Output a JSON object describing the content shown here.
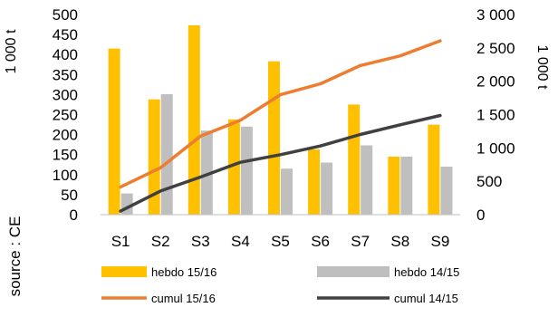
{
  "chart_data": {
    "type": "bar+line",
    "categories": [
      "S1",
      "S2",
      "S3",
      "S4",
      "S5",
      "S6",
      "S7",
      "S8",
      "S9"
    ],
    "series": [
      {
        "name": "hebdo 15/16",
        "kind": "bar",
        "axis": "left",
        "color": "#FFC000",
        "values": [
          415,
          288,
          473,
          238,
          383,
          163,
          275,
          145,
          225
        ]
      },
      {
        "name": "hebdo 14/15",
        "kind": "bar",
        "axis": "left",
        "color": "#BFBFBF",
        "values": [
          53,
          301,
          210,
          220,
          115,
          130,
          173,
          145,
          120
        ]
      },
      {
        "name": "cumul 15/16",
        "kind": "line",
        "axis": "right",
        "color": "#ED7D31",
        "values": [
          415,
          703,
          1176,
          1414,
          1797,
          1960,
          2235,
          2380,
          2605
        ]
      },
      {
        "name": "cumul 14/15",
        "kind": "line",
        "axis": "right",
        "color": "#404040",
        "values": [
          53,
          354,
          564,
          784,
          899,
          1029,
          1202,
          1347,
          1487
        ]
      }
    ],
    "y_left": {
      "label": "1 000 t",
      "range": [
        0,
        500
      ],
      "ticks": [
        0,
        50,
        100,
        150,
        200,
        250,
        300,
        350,
        400,
        450,
        500
      ],
      "tick_labels": [
        "0",
        "50",
        "100",
        "150",
        "200",
        "250",
        "300",
        "350",
        "400",
        "450",
        "500"
      ]
    },
    "y_right": {
      "label": "1 000 t",
      "range": [
        0,
        3000
      ],
      "ticks": [
        0,
        500,
        1000,
        1500,
        2000,
        2500,
        3000
      ],
      "tick_labels": [
        "0",
        "500",
        "1 000",
        "1 500",
        "2 000",
        "2 500",
        "3 000"
      ]
    },
    "grid": false,
    "legend_position": "bottom",
    "source": "source : CE"
  }
}
